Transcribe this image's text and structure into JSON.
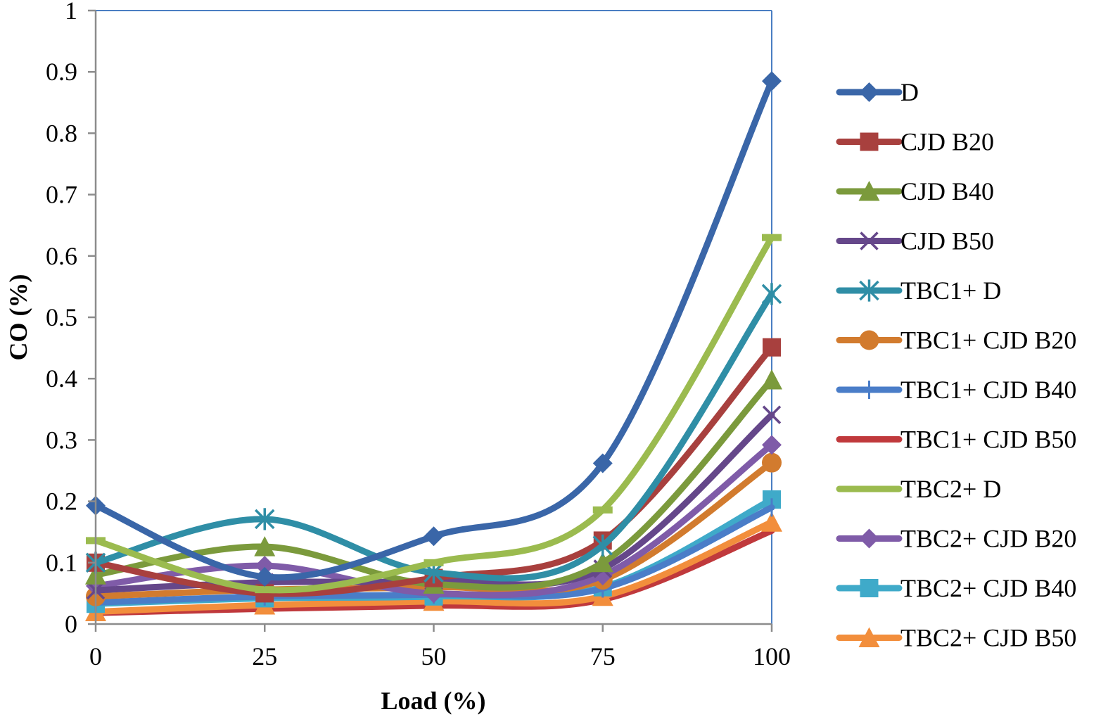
{
  "chart_data": {
    "type": "line",
    "title": "",
    "xlabel": "Load (%)",
    "ylabel": "CO (%)",
    "x": [
      0,
      25,
      50,
      75,
      100
    ],
    "xticks": [
      "0",
      "25",
      "50",
      "75",
      "100"
    ],
    "yticks": [
      "0",
      "0.1",
      "0.2",
      "0.3",
      "0.4",
      "0.5",
      "0.6",
      "0.7",
      "0.8",
      "0.9",
      "1"
    ],
    "xlim": [
      0,
      100
    ],
    "ylim": [
      0,
      1
    ],
    "grid": false,
    "legend_position": "right",
    "smooth": true,
    "series": [
      {
        "name": "D",
        "color": "#3A66A8",
        "marker": "diamond",
        "values": [
          0.193,
          0.077,
          0.143,
          0.262,
          0.885
        ]
      },
      {
        "name": "CJD B20",
        "color": "#A8403E",
        "marker": "square",
        "values": [
          0.1,
          0.05,
          0.075,
          0.136,
          0.451
        ]
      },
      {
        "name": "CJD B40",
        "color": "#7B9A3C",
        "marker": "triangle",
        "values": [
          0.08,
          0.126,
          0.065,
          0.1,
          0.398
        ]
      },
      {
        "name": "CJD B50",
        "color": "#65478A",
        "marker": "x",
        "values": [
          0.055,
          0.068,
          0.07,
          0.09,
          0.341
        ]
      },
      {
        "name": "TBC1+ D",
        "color": "#2F8EA6",
        "marker": "star",
        "values": [
          0.1,
          0.171,
          0.084,
          0.128,
          0.538
        ]
      },
      {
        "name": "TBC1+ CJD B20",
        "color": "#D27B2E",
        "marker": "circle",
        "values": [
          0.045,
          0.056,
          0.06,
          0.072,
          0.263
        ]
      },
      {
        "name": "TBC1+ CJD B40",
        "color": "#4A7DC8",
        "marker": "plus",
        "values": [
          0.035,
          0.045,
          0.048,
          0.058,
          0.19
        ]
      },
      {
        "name": "TBC1+ CJD B50",
        "color": "#C0393C",
        "marker": "none",
        "values": [
          0.018,
          0.025,
          0.03,
          0.04,
          0.152
        ]
      },
      {
        "name": "TBC2+ D",
        "color": "#9BBB4F",
        "marker": "dash",
        "values": [
          0.136,
          0.056,
          0.1,
          0.186,
          0.63
        ]
      },
      {
        "name": "TBC2+ CJD B20",
        "color": "#7F5BA8",
        "marker": "diamond",
        "values": [
          0.062,
          0.095,
          0.05,
          0.079,
          0.292
        ]
      },
      {
        "name": "TBC2+ CJD B40",
        "color": "#3FAAC9",
        "marker": "square",
        "values": [
          0.033,
          0.042,
          0.045,
          0.06,
          0.203
        ]
      },
      {
        "name": "TBC2+ CJD B50",
        "color": "#F28E3C",
        "marker": "triangle",
        "values": [
          0.02,
          0.031,
          0.037,
          0.045,
          0.166
        ]
      }
    ]
  }
}
